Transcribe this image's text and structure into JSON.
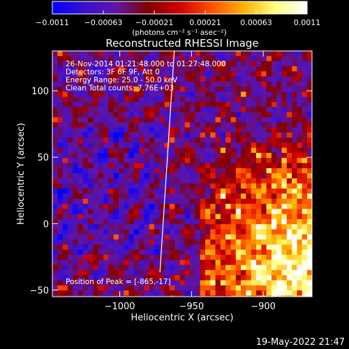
{
  "chart_data": {
    "type": "heatmap",
    "title": "Reconstructed RHESSI Image",
    "xlabel": "Heliocentric X (arcsec)",
    "ylabel": "Heliocentric Y (arcsec)",
    "xlim": [
      -1047,
      -866
    ],
    "ylim": [
      -55,
      130
    ],
    "x_ticks": [
      -1000,
      -950,
      -900
    ],
    "x_tick_labels": [
      "−1000",
      "−950",
      "−900"
    ],
    "y_ticks": [
      -50,
      0,
      50,
      100
    ],
    "y_tick_labels": [
      "−50",
      "0",
      "50",
      "100"
    ],
    "info_lines": [
      "26-Nov-2014 01:21:48.000 to 01:27:48.000",
      "Detectors: 3F 6F 9F, Att 0",
      "Energy Range: 25.0 - 50.0 keV",
      "Clean     Total counts: 7.76E+03"
    ],
    "peak_label": "Position of Peak = [-865,-17]",
    "peak_position": [
      -865,
      -17
    ],
    "limb_line": {
      "x_top": -962,
      "x_bottom": -972,
      "color": "#ffffff"
    },
    "colorbar": {
      "range": [
        -0.0011,
        0.0011
      ],
      "tick_labels": [
        "−0.0011",
        "−0.00063",
        "−0.00021",
        "0.00021",
        "0.00063",
        "0.0011"
      ],
      "unit_label": "(photons cm⁻² s⁻¹ asec⁻²)",
      "colors": [
        "#0000ff",
        "#3a10d0",
        "#6014a8",
        "#800000",
        "#d00000",
        "#ff5000",
        "#ffb000",
        "#ffff80",
        "#ffffff"
      ]
    },
    "grid": false,
    "legend": "none"
  },
  "footer": {
    "timestamp": "19-May-2022 21:47"
  }
}
